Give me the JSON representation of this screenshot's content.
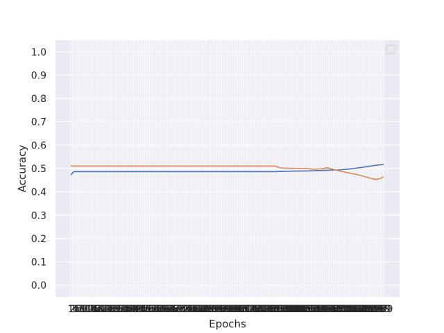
{
  "chart_data": {
    "type": "line",
    "title": "",
    "xlabel": "Epochs",
    "ylabel": "Accuracy",
    "ylim": [
      -0.05,
      1.05
    ],
    "yticks": [
      "0.0",
      "0.1",
      "0.2",
      "0.3",
      "0.4",
      "0.5",
      "0.6",
      "0.7",
      "0.8",
      "0.9",
      "1.0"
    ],
    "x_count": 200,
    "grid": true,
    "legend": "top-right (empty)",
    "background": "#eaeaf2",
    "series": [
      {
        "color": "#4c72b0",
        "points": [
          [
            0,
            0.473
          ],
          [
            2,
            0.487
          ],
          [
            130,
            0.487
          ],
          [
            140,
            0.489
          ],
          [
            150,
            0.49
          ],
          [
            160,
            0.492
          ],
          [
            170,
            0.494
          ],
          [
            175,
            0.497
          ],
          [
            180,
            0.5
          ],
          [
            185,
            0.505
          ],
          [
            190,
            0.51
          ],
          [
            195,
            0.515
          ],
          [
            199,
            0.518
          ]
        ]
      },
      {
        "color": "#dd8452",
        "points": [
          [
            0,
            0.511
          ],
          [
            130,
            0.511
          ],
          [
            133,
            0.503
          ],
          [
            150,
            0.5
          ],
          [
            155,
            0.497
          ],
          [
            160,
            0.499
          ],
          [
            163,
            0.504
          ],
          [
            168,
            0.494
          ],
          [
            175,
            0.484
          ],
          [
            183,
            0.473
          ],
          [
            190,
            0.46
          ],
          [
            194,
            0.453
          ],
          [
            197,
            0.458
          ],
          [
            199,
            0.465
          ]
        ]
      }
    ]
  }
}
